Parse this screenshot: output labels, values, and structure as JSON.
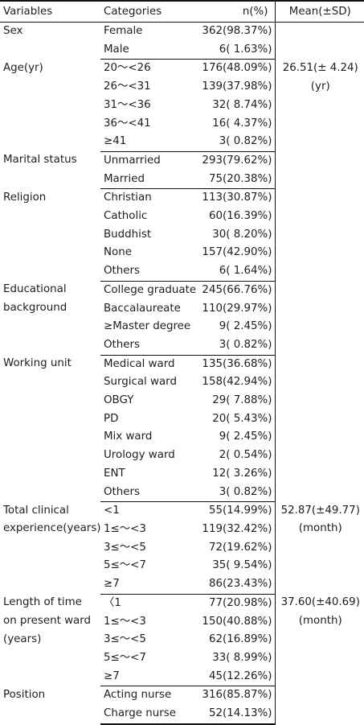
{
  "headers": [
    "Variables",
    "Categories",
    "n(%)",
    "Mean(±SD)"
  ],
  "groups": [
    {
      "variable": [
        "Sex"
      ],
      "mean": [],
      "rows": [
        {
          "category": "Female",
          "n": "362(98.37%)"
        },
        {
          "category": "Male",
          "n": "6( 1.63%)"
        }
      ]
    },
    {
      "variable": [
        "Age(yr)"
      ],
      "mean": [
        "26.51(± 4.24)",
        "(yr)"
      ],
      "rows": [
        {
          "category": "20～<26",
          "n": "176(48.09%)"
        },
        {
          "category": "26～<31",
          "n": "139(37.98%)"
        },
        {
          "category": "31～<36",
          "n": "32( 8.74%)"
        },
        {
          "category": "36～<41",
          "n": "16( 4.37%)"
        },
        {
          "category": "≥41",
          "n": "3( 0.82%)"
        }
      ]
    },
    {
      "variable": [
        "Marital status"
      ],
      "mean": [],
      "rows": [
        {
          "category": "Unmarried",
          "n": "293(79.62%)"
        },
        {
          "category": "Married",
          "n": "75(20.38%)"
        }
      ]
    },
    {
      "variable": [
        "Religion"
      ],
      "mean": [],
      "rows": [
        {
          "category": "Christian",
          "n": "113(30.87%)"
        },
        {
          "category": "Catholic",
          "n": "60(16.39%)"
        },
        {
          "category": "Buddhist",
          "n": "30( 8.20%)"
        },
        {
          "category": "None",
          "n": "157(42.90%)"
        },
        {
          "category": "Others",
          "n": "6( 1.64%)"
        }
      ]
    },
    {
      "variable": [
        "Educational",
        "background"
      ],
      "mean": [],
      "rows": [
        {
          "category": "College graduate",
          "n": "245(66.76%)"
        },
        {
          "category": "Baccalaureate",
          "n": "110(29.97%)"
        },
        {
          "category": "≥Master degree",
          "n": "9( 2.45%)"
        },
        {
          "category": "Others",
          "n": "3( 0.82%)"
        }
      ]
    },
    {
      "variable": [
        "Working  unit"
      ],
      "mean": [],
      "rows": [
        {
          "category": "Medical ward",
          "n": "135(36.68%)"
        },
        {
          "category": "Surgical ward",
          "n": "158(42.94%)"
        },
        {
          "category": "OBGY",
          "n": "29( 7.88%)"
        },
        {
          "category": "PD",
          "n": "20( 5.43%)"
        },
        {
          "category": "Mix ward",
          "n": "9( 2.45%)"
        },
        {
          "category": "Urology ward",
          "n": "2( 0.54%)"
        },
        {
          "category": "ENT",
          "n": "12( 3.26%)"
        },
        {
          "category": "Others",
          "n": "3( 0.82%)"
        }
      ]
    },
    {
      "variable": [
        "Total  clinical",
        "experience(years)"
      ],
      "mean": [
        "52.87(±49.77)",
        "(month)"
      ],
      "rows": [
        {
          "category": "<1",
          "n": "55(14.99%)"
        },
        {
          "category": "1≤～<3",
          "n": "119(32.42%)"
        },
        {
          "category": "3≤～<5",
          "n": "72(19.62%)"
        },
        {
          "category": "5≤～<7",
          "n": "35( 9.54%)"
        },
        {
          "category": "≥7",
          "n": "86(23.43%)"
        }
      ]
    },
    {
      "variable": [
        "Length  of  time",
        "on present ward",
        "(years)"
      ],
      "mean": [
        "37.60(±40.69)",
        "(month)"
      ],
      "rows": [
        {
          "category": "〈1",
          "n": "77(20.98%)"
        },
        {
          "category": "1≤～<3",
          "n": "150(40.88%)"
        },
        {
          "category": "3≤～<5",
          "n": "62(16.89%)"
        },
        {
          "category": "5≤～<7",
          "n": "33( 8.99%)"
        },
        {
          "category": "≥7",
          "n": "45(12.26%)"
        }
      ]
    },
    {
      "variable": [
        "Position"
      ],
      "mean": [],
      "rows": [
        {
          "category": "Acting  nurse",
          "n": "316(85.87%)"
        },
        {
          "category": "Charge  nurse",
          "n": "52(14.13%)"
        }
      ]
    }
  ]
}
